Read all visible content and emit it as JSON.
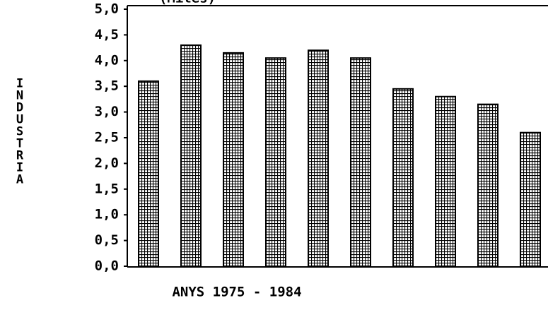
{
  "chart_data": {
    "type": "bar",
    "title": "(Miles)",
    "y_label": "INDUSTRIA",
    "x_label": "ANYS 1975 - 1984",
    "categories": [
      null,
      null,
      null,
      null,
      null,
      null,
      null,
      null,
      null,
      null
    ],
    "values": [
      3.6,
      4.3,
      4.15,
      4.05,
      4.2,
      4.05,
      3.45,
      3.3,
      3.15,
      2.6
    ],
    "color": "#000000",
    "ylim": [
      0,
      5
    ],
    "yticks": [
      {
        "value": 0,
        "label": "0,0"
      },
      {
        "value": 0.5,
        "label": "0,5"
      },
      {
        "value": 1,
        "label": "1,0"
      },
      {
        "value": 1.5,
        "label": "1,5"
      },
      {
        "value": 2,
        "label": "2,0"
      },
      {
        "value": 2.5,
        "label": "2,5"
      },
      {
        "value": 3,
        "label": "3,0"
      },
      {
        "value": 3.5,
        "label": "3,5"
      },
      {
        "value": 4,
        "label": "4,0"
      },
      {
        "value": 4.5,
        "label": "4,5"
      },
      {
        "value": 5,
        "label": "5,0"
      }
    ],
    "grid": false
  }
}
